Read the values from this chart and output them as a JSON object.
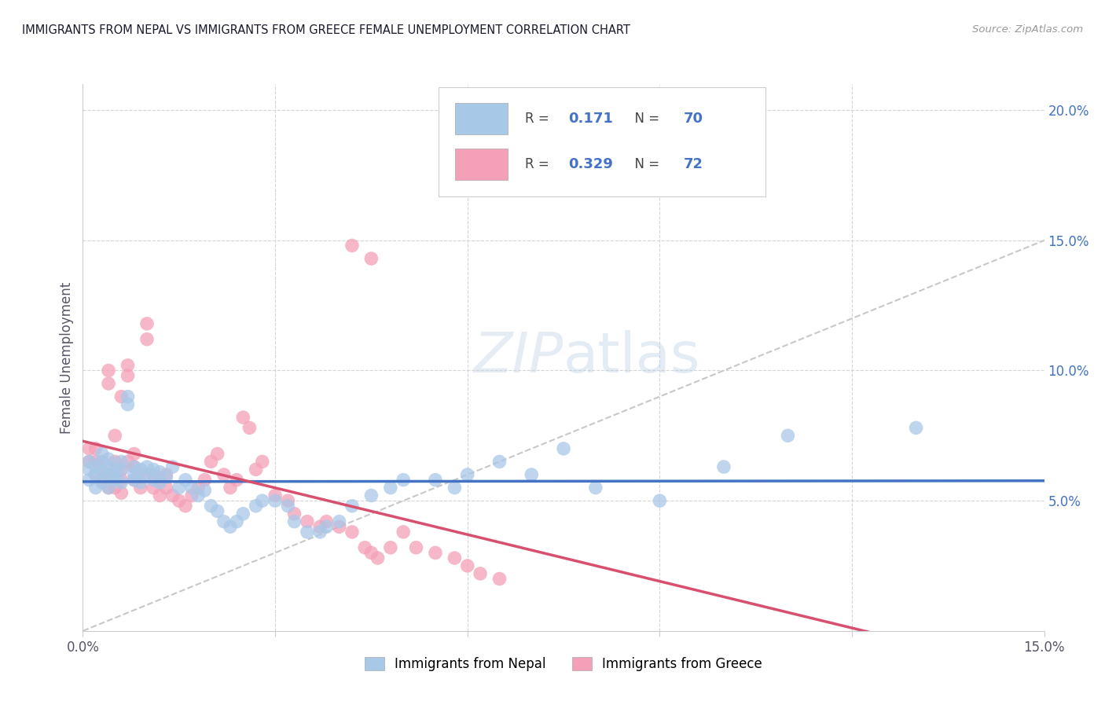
{
  "title": "IMMIGRANTS FROM NEPAL VS IMMIGRANTS FROM GREECE FEMALE UNEMPLOYMENT CORRELATION CHART",
  "source_text": "Source: ZipAtlas.com",
  "ylabel": "Female Unemployment",
  "xlim": [
    0.0,
    0.15
  ],
  "ylim": [
    0.0,
    0.21
  ],
  "nepal_R": "0.171",
  "nepal_N": "70",
  "greece_R": "0.329",
  "greece_N": "72",
  "nepal_color": "#a8c8e8",
  "greece_color": "#f4a0b8",
  "nepal_line_color": "#4472c4",
  "greece_line_color": "#d94f6e",
  "ref_line_color": "#c8c8c8",
  "background_color": "#ffffff",
  "grid_color": "#d5d5d5",
  "title_color": "#1a1a2e",
  "label_color": "#555566",
  "right_tick_color": "#4472c4",
  "nepal_scatter_x": [
    0.001,
    0.001,
    0.001,
    0.002,
    0.002,
    0.002,
    0.003,
    0.003,
    0.003,
    0.003,
    0.004,
    0.004,
    0.004,
    0.004,
    0.005,
    0.005,
    0.005,
    0.006,
    0.006,
    0.006,
    0.007,
    0.007,
    0.008,
    0.008,
    0.008,
    0.009,
    0.009,
    0.01,
    0.01,
    0.011,
    0.011,
    0.012,
    0.012,
    0.013,
    0.014,
    0.015,
    0.016,
    0.017,
    0.018,
    0.019,
    0.02,
    0.021,
    0.022,
    0.023,
    0.024,
    0.025,
    0.027,
    0.028,
    0.03,
    0.032,
    0.033,
    0.035,
    0.037,
    0.038,
    0.04,
    0.042,
    0.045,
    0.048,
    0.05,
    0.055,
    0.058,
    0.06,
    0.065,
    0.07,
    0.075,
    0.08,
    0.09,
    0.1,
    0.11,
    0.13
  ],
  "nepal_scatter_y": [
    0.058,
    0.062,
    0.065,
    0.055,
    0.06,
    0.063,
    0.057,
    0.061,
    0.065,
    0.068,
    0.055,
    0.06,
    0.063,
    0.066,
    0.058,
    0.062,
    0.06,
    0.057,
    0.062,
    0.065,
    0.09,
    0.087,
    0.058,
    0.063,
    0.06,
    0.062,
    0.057,
    0.06,
    0.063,
    0.058,
    0.062,
    0.057,
    0.061,
    0.059,
    0.063,
    0.055,
    0.058,
    0.055,
    0.052,
    0.054,
    0.048,
    0.046,
    0.042,
    0.04,
    0.042,
    0.045,
    0.048,
    0.05,
    0.05,
    0.048,
    0.042,
    0.038,
    0.038,
    0.04,
    0.042,
    0.048,
    0.052,
    0.055,
    0.058,
    0.058,
    0.055,
    0.06,
    0.065,
    0.06,
    0.07,
    0.055,
    0.05,
    0.063,
    0.075,
    0.078
  ],
  "greece_scatter_x": [
    0.001,
    0.001,
    0.002,
    0.002,
    0.002,
    0.003,
    0.003,
    0.003,
    0.004,
    0.004,
    0.004,
    0.004,
    0.005,
    0.005,
    0.005,
    0.005,
    0.006,
    0.006,
    0.006,
    0.006,
    0.007,
    0.007,
    0.007,
    0.008,
    0.008,
    0.008,
    0.009,
    0.009,
    0.01,
    0.01,
    0.011,
    0.011,
    0.012,
    0.012,
    0.013,
    0.013,
    0.014,
    0.015,
    0.016,
    0.017,
    0.018,
    0.019,
    0.02,
    0.021,
    0.022,
    0.023,
    0.024,
    0.025,
    0.026,
    0.027,
    0.028,
    0.03,
    0.032,
    0.033,
    0.035,
    0.037,
    0.038,
    0.04,
    0.042,
    0.044,
    0.045,
    0.046,
    0.048,
    0.05,
    0.052,
    0.055,
    0.058,
    0.06,
    0.062,
    0.065,
    0.042,
    0.045
  ],
  "greece_scatter_y": [
    0.065,
    0.07,
    0.06,
    0.065,
    0.07,
    0.058,
    0.062,
    0.065,
    0.055,
    0.06,
    0.095,
    0.1,
    0.055,
    0.06,
    0.065,
    0.075,
    0.053,
    0.058,
    0.062,
    0.09,
    0.065,
    0.098,
    0.102,
    0.058,
    0.063,
    0.068,
    0.055,
    0.06,
    0.112,
    0.118,
    0.055,
    0.06,
    0.052,
    0.058,
    0.055,
    0.06,
    0.052,
    0.05,
    0.048,
    0.052,
    0.055,
    0.058,
    0.065,
    0.068,
    0.06,
    0.055,
    0.058,
    0.082,
    0.078,
    0.062,
    0.065,
    0.052,
    0.05,
    0.045,
    0.042,
    0.04,
    0.042,
    0.04,
    0.038,
    0.032,
    0.03,
    0.028,
    0.032,
    0.038,
    0.032,
    0.03,
    0.028,
    0.025,
    0.022,
    0.02,
    0.148,
    0.143
  ]
}
